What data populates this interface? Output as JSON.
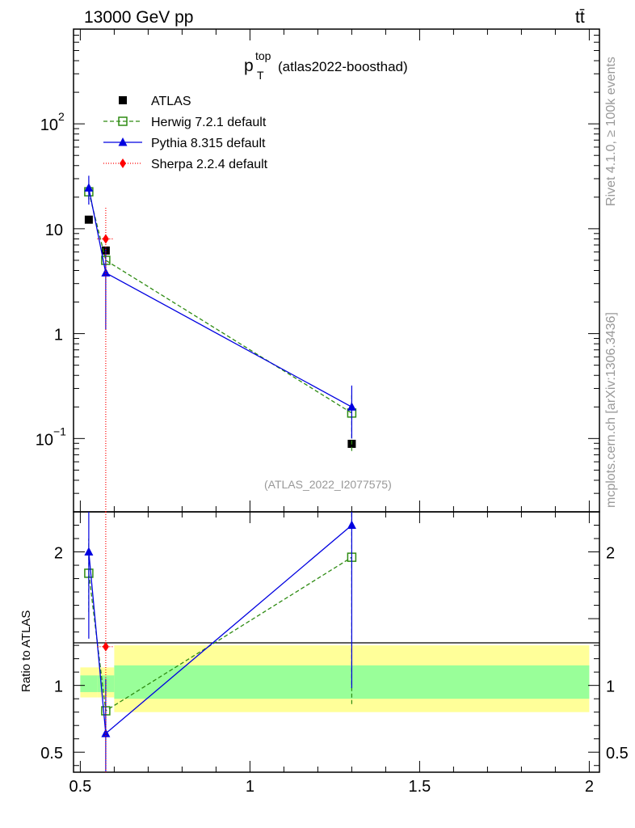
{
  "header": {
    "energy_label": "13000 GeV pp",
    "process_label": "tt̄"
  },
  "side_labels": {
    "rivet": "Rivet 4.1.0, ≥ 100k events",
    "mcplots": "mcplots.cern.ch [arXiv:1306.3436]"
  },
  "plot": {
    "title_main": "p",
    "title_sup": "top",
    "title_sub": "T",
    "title_tag": "(atlas2022-boosthad)",
    "reference": "(ATLAS_2022_I2077575)",
    "ratio_ylabel": "Ratio to ATLAS"
  },
  "chart_data": {
    "type": "line",
    "xlim": [
      0.48,
      2.03
    ],
    "ylim_main": [
      0.02,
      800
    ],
    "yscale_main": "log",
    "ylim_ratio": [
      0.35,
      2.3
    ],
    "main_ticks": [
      {
        "value": 0.1,
        "base": "10",
        "exp": "−1"
      },
      {
        "value": 1,
        "base": "1",
        "exp": ""
      },
      {
        "value": 10,
        "base": "10",
        "exp": ""
      },
      {
        "value": 100,
        "base": "10",
        "exp": "2"
      }
    ],
    "ratio_ticks": [
      {
        "value": 0.5,
        "label": "0.5"
      },
      {
        "value": 1,
        "label": "1"
      },
      {
        "value": 2,
        "label": "2"
      }
    ],
    "x_ticks": [
      {
        "value": 0.5,
        "label": "0.5"
      },
      {
        "value": 1,
        "label": "1"
      },
      {
        "value": 1.5,
        "label": "1.5"
      },
      {
        "value": 2,
        "label": "2"
      }
    ],
    "data_bins": [
      {
        "x": 0.525,
        "y": 12.2,
        "xlo": 0.5,
        "xhi": 0.55,
        "rel_stat": 0.05,
        "rel_tot": 0.09
      },
      {
        "x": 0.575,
        "y": 6.2,
        "xlo": 0.55,
        "xhi": 0.6,
        "rel_stat": 0.05,
        "rel_tot": 0.09
      },
      {
        "x": 1.3,
        "y": 0.089,
        "xlo": 0.6,
        "xhi": 2.0,
        "rel_stat": 0.1,
        "rel_tot": 0.2
      }
    ],
    "series": [
      {
        "name": "ATLAS",
        "role": "data",
        "color": "#000000",
        "marker": "square"
      },
      {
        "name": "Herwig 7.2.1 default",
        "color": "#2e8b12",
        "marker": "open-square",
        "dash": "5,3",
        "x": [
          0.525,
          0.575,
          1.3
        ],
        "y": [
          22.5,
          5.0,
          0.175
        ],
        "err": [
          [
            19.0,
            26.0
          ],
          [
            4.6,
            5.4
          ],
          [
            0.076,
            0.26
          ]
        ],
        "ratio": [
          1.84,
          0.81,
          1.96
        ],
        "ratio_err": [
          [
            1.55,
            2.1
          ],
          [
            0.78,
            0.85
          ],
          [
            0.86,
            2.9
          ]
        ]
      },
      {
        "name": "Pythia 8.315 default",
        "color": "#0000e0",
        "marker": "triangle",
        "dash": "",
        "x": [
          0.525,
          0.575,
          1.3
        ],
        "y": [
          24.5,
          3.8,
          0.2
        ],
        "err": [
          [
            17.0,
            32.0
          ],
          [
            1.1,
            6.5
          ],
          [
            0.1,
            0.32
          ]
        ],
        "ratio": [
          2.0,
          0.64,
          2.2
        ],
        "ratio_err": [
          [
            1.35,
            2.6
          ],
          [
            0.2,
            1.05
          ],
          [
            0.98,
            3.0
          ]
        ]
      },
      {
        "name": "Sherpa 2.2.4 default",
        "color": "#ff0000",
        "marker": "diamond",
        "dash": "1,2",
        "x": [
          0.575
        ],
        "y": [
          8.0
        ],
        "err": [
          [
            0.01,
            16.0
          ]
        ],
        "ratio": [
          1.29
        ],
        "ratio_err": [
          [
            0.2,
            2.6
          ]
        ]
      }
    ]
  }
}
